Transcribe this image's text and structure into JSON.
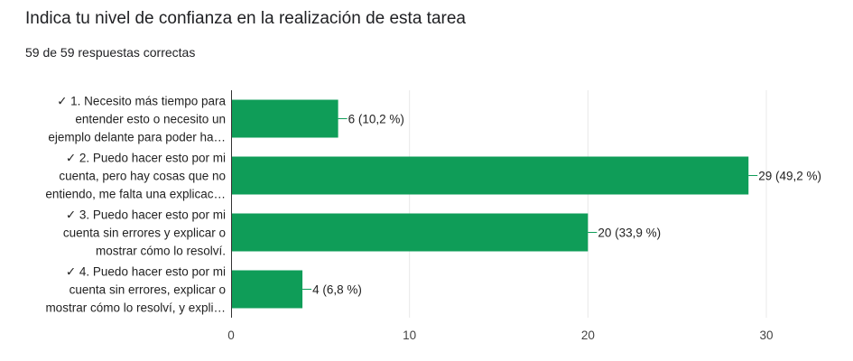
{
  "question": {
    "title": "Indica tu nivel de confianza en la realización de esta tarea",
    "summary": "59 de 59 respuestas correctas"
  },
  "colors": {
    "bar": "#0f9d58",
    "grid": "#e8e8e8",
    "axis": "#333333"
  },
  "chart_data": {
    "type": "bar",
    "orientation": "horizontal",
    "categories": [
      [
        "✓ 1. Necesito más tiempo para",
        "entender esto o necesito un",
        "ejemplo delante para poder ha…"
      ],
      [
        "✓ 2. Puedo hacer esto por mi",
        "cuenta, pero hay cosas que no",
        "entiendo, me falta una explicac…"
      ],
      [
        "✓ 3. Puedo hacer esto por mi",
        "cuenta sin errores y explicar o",
        "mostrar cómo lo resolví."
      ],
      [
        "✓ 4. Puedo hacer esto por mi",
        "cuenta sin errores, explicar o",
        "mostrar cómo lo resolví, y expli…"
      ]
    ],
    "values": [
      6,
      29,
      20,
      4
    ],
    "data_labels": [
      "6 (10,2 %)",
      "29 (49,2 %)",
      "20 (33,9 %)",
      "4 (6,8 %)"
    ],
    "xlim": [
      0,
      30
    ],
    "xticks": [
      0,
      10,
      20,
      30
    ],
    "grid": true
  }
}
